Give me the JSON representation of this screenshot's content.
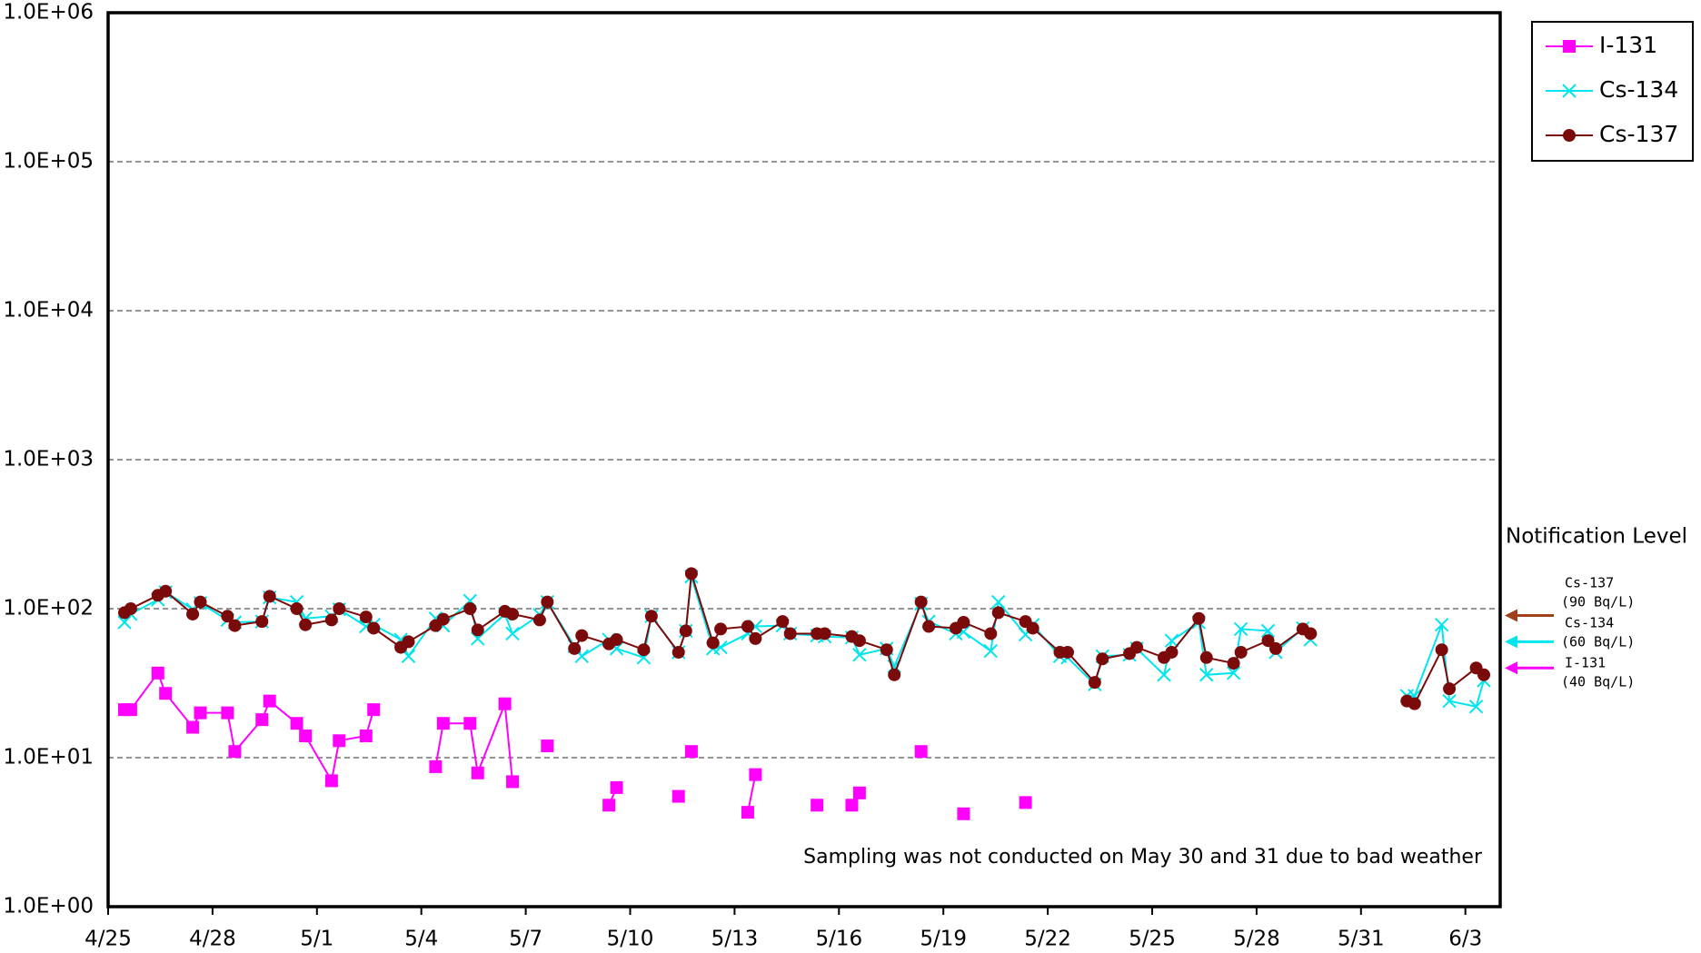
{
  "chart_data": {
    "type": "line",
    "yscale": "log",
    "ylim": [
      1,
      1000000
    ],
    "yticks": [
      {
        "value": 1,
        "label": "1.0E+00"
      },
      {
        "value": 10,
        "label": "1.0E+01"
      },
      {
        "value": 100,
        "label": "1.0E+02"
      },
      {
        "value": 1000,
        "label": "1.0E+03"
      },
      {
        "value": 10000,
        "label": "1.0E+04"
      },
      {
        "value": 100000,
        "label": "1.0E+05"
      },
      {
        "value": 1000000,
        "label": "1.0E+06"
      }
    ],
    "xlim": [
      0,
      40
    ],
    "xticks": [
      {
        "value": 0,
        "label": "4/25"
      },
      {
        "value": 3,
        "label": "4/28"
      },
      {
        "value": 6,
        "label": "5/1"
      },
      {
        "value": 9,
        "label": "5/4"
      },
      {
        "value": 12,
        "label": "5/7"
      },
      {
        "value": 15,
        "label": "5/10"
      },
      {
        "value": 18,
        "label": "5/13"
      },
      {
        "value": 21,
        "label": "5/16"
      },
      {
        "value": 24,
        "label": "5/19"
      },
      {
        "value": 27,
        "label": "5/22"
      },
      {
        "value": 30,
        "label": "5/25"
      },
      {
        "value": 33,
        "label": "5/28"
      },
      {
        "value": 36,
        "label": "5/31"
      },
      {
        "value": 39,
        "label": "6/3"
      }
    ],
    "grid": true,
    "legend": "top-right-outside",
    "x": [
      0.47,
      0.65,
      1.43,
      1.65,
      2.43,
      2.65,
      3.43,
      3.64,
      4.42,
      4.64,
      5.42,
      5.67,
      6.42,
      6.64,
      7.41,
      7.63,
      8.41,
      8.63,
      9.41,
      9.63,
      10.4,
      10.62,
      11.4,
      11.62,
      12.4,
      12.62,
      13.4,
      13.61,
      14.39,
      14.61,
      15.39,
      15.61,
      16.39,
      16.6,
      16.76,
      17.38,
      17.6,
      18.38,
      18.6,
      19.38,
      19.6,
      20.37,
      20.59,
      21.37,
      21.59,
      22.37,
      22.59,
      23.36,
      23.58,
      24.36,
      24.58,
      25.36,
      25.58,
      26.36,
      26.57,
      27.35,
      27.57,
      28.35,
      28.57,
      29.35,
      29.56,
      30.34,
      30.56,
      31.34,
      31.56,
      32.34,
      32.55,
      33.33,
      33.55,
      34.33,
      34.55,
      35.5,
      37.32,
      37.54,
      38.32,
      38.54,
      39.31,
      39.53
    ],
    "series": [
      {
        "name": "I-131",
        "color": "#ff00ff",
        "marker": "square",
        "values": [
          21,
          21,
          37,
          27,
          16,
          20,
          20,
          11,
          18,
          24,
          17,
          14,
          7.0,
          13,
          14,
          21,
          null,
          null,
          8.7,
          17,
          17,
          7.9,
          23,
          6.9,
          null,
          12,
          null,
          null,
          4.8,
          6.3,
          null,
          null,
          5.5,
          null,
          11,
          null,
          null,
          4.3,
          7.7,
          null,
          null,
          4.8,
          null,
          4.8,
          5.8,
          null,
          null,
          11,
          null,
          null,
          4.2,
          null,
          null,
          5.0,
          null,
          null,
          null,
          null,
          null,
          null,
          null,
          null,
          null,
          null,
          null,
          null,
          null,
          null,
          null,
          null,
          null,
          null,
          null,
          null,
          null,
          null,
          null,
          null
        ]
      },
      {
        "name": "Cs-134",
        "color": "#00e5ee",
        "marker": "x",
        "values": [
          81,
          92,
          115,
          129,
          99,
          109,
          84,
          81,
          82,
          119,
          111,
          86,
          89,
          99,
          76,
          78,
          62,
          48,
          86,
          77,
          113,
          63,
          92,
          68,
          91,
          111,
          56,
          48,
          62,
          54,
          47,
          89,
          51,
          71,
          164,
          54,
          55,
          68,
          76,
          77,
          68,
          66,
          65,
          64,
          49,
          54,
          41,
          108,
          82,
          68,
          70,
          52,
          111,
          67,
          78,
          48,
          47,
          31,
          48,
          49,
          54,
          36,
          61,
          81,
          36,
          37,
          73,
          71,
          51,
          74,
          62,
          null,
          26,
          26,
          78,
          24,
          22,
          33
        ]
      },
      {
        "name": "Cs-137",
        "color": "#7b0a0a",
        "marker": "circle",
        "values": [
          94,
          100,
          123,
          131,
          92,
          111,
          89,
          77,
          82,
          121,
          100,
          78,
          84,
          100,
          88,
          74,
          55,
          60,
          77,
          85,
          100,
          72,
          96,
          92,
          84,
          111,
          54,
          66,
          58,
          62,
          53,
          89,
          51,
          71,
          172,
          59,
          73,
          76,
          63,
          82,
          68,
          68,
          68,
          65,
          61,
          53,
          36,
          111,
          76,
          74,
          81,
          68,
          94,
          82,
          74,
          51,
          51,
          32,
          46,
          50,
          55,
          47,
          51,
          86,
          47,
          43,
          51,
          61,
          54,
          73,
          68,
          null,
          24,
          23,
          53,
          29,
          40,
          36
        ]
      }
    ],
    "annotation": "Sampling was not conducted on May 30 and 31 due to bad weather",
    "notification": {
      "title": "Notification Level",
      "levels": [
        {
          "name": "Cs-137",
          "label": "(90  Bq/L)",
          "value": 90,
          "color": "#a0401a"
        },
        {
          "name": "Cs-134",
          "label": "(60  Bq/L)",
          "value": 60,
          "color": "#00e5ee"
        },
        {
          "name": "I-131",
          "label": "(40  Bq/L)",
          "value": 40,
          "color": "#ff00ff"
        }
      ]
    }
  }
}
